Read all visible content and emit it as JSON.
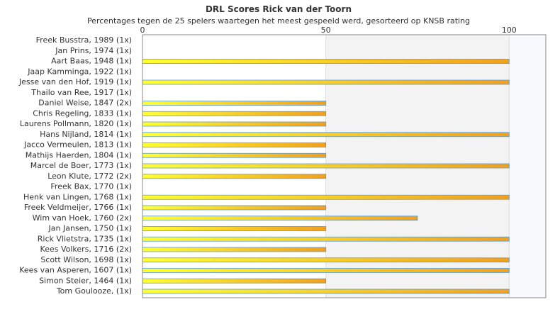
{
  "chart_data": {
    "type": "bar",
    "orientation": "horizontal",
    "title": "DRL Scores Rick van der Toorn",
    "subtitle": "Percentages tegen de 25 spelers waartegen het meest gespeeld werd, gesorteerd op KNSB rating",
    "xlabel": "",
    "ylabel": "",
    "xlim": [
      0,
      110
    ],
    "xticks": [
      "0",
      "50",
      "100"
    ],
    "grid": true,
    "legend": "none",
    "colors": {
      "bar_start": "#ffff33",
      "bar_end": "#f0a020",
      "bar_border": "#5b9bd5",
      "band_light": "#f3f3f3",
      "plot_border": "#888888"
    },
    "categories": [
      "Freek Busstra, 1989 (1x)",
      "Jan Prins, 1974 (1x)",
      "Aart Baas, 1948 (1x)",
      "Jaap Kamminga, 1922 (1x)",
      "Jesse van den Hof, 1919 (1x)",
      "Thailo van Ree, 1917 (1x)",
      "Daniel Weise, 1847 (2x)",
      "Chris Regeling, 1833 (1x)",
      "Laurens Pollmann, 1820 (1x)",
      "Hans Nijland, 1814 (1x)",
      "Jacco Vermeulen, 1813 (1x)",
      "Mathijs Haerden, 1804 (1x)",
      "Marcel de Boer, 1773 (1x)",
      "Leon Klute, 1772 (2x)",
      "Freek Bax, 1770 (1x)",
      "Henk van Lingen, 1768 (1x)",
      "Freek Veldmeijer, 1766 (1x)",
      "Wim van Hoek, 1760 (2x)",
      "Jan Jansen, 1750 (1x)",
      "Rick Vlietstra, 1735 (1x)",
      "Kees Volkers, 1716 (2x)",
      "Scott Wilson, 1698 (1x)",
      "Kees van Asperen, 1607 (1x)",
      "Simon Steier, 1464 (1x)",
      "Tom Goulooze,  (1x)"
    ],
    "values": [
      0,
      0,
      100,
      0,
      100,
      0,
      50,
      50,
      50,
      100,
      50,
      50,
      100,
      50,
      0,
      100,
      50,
      75,
      50,
      100,
      50,
      100,
      100,
      50,
      100
    ]
  }
}
